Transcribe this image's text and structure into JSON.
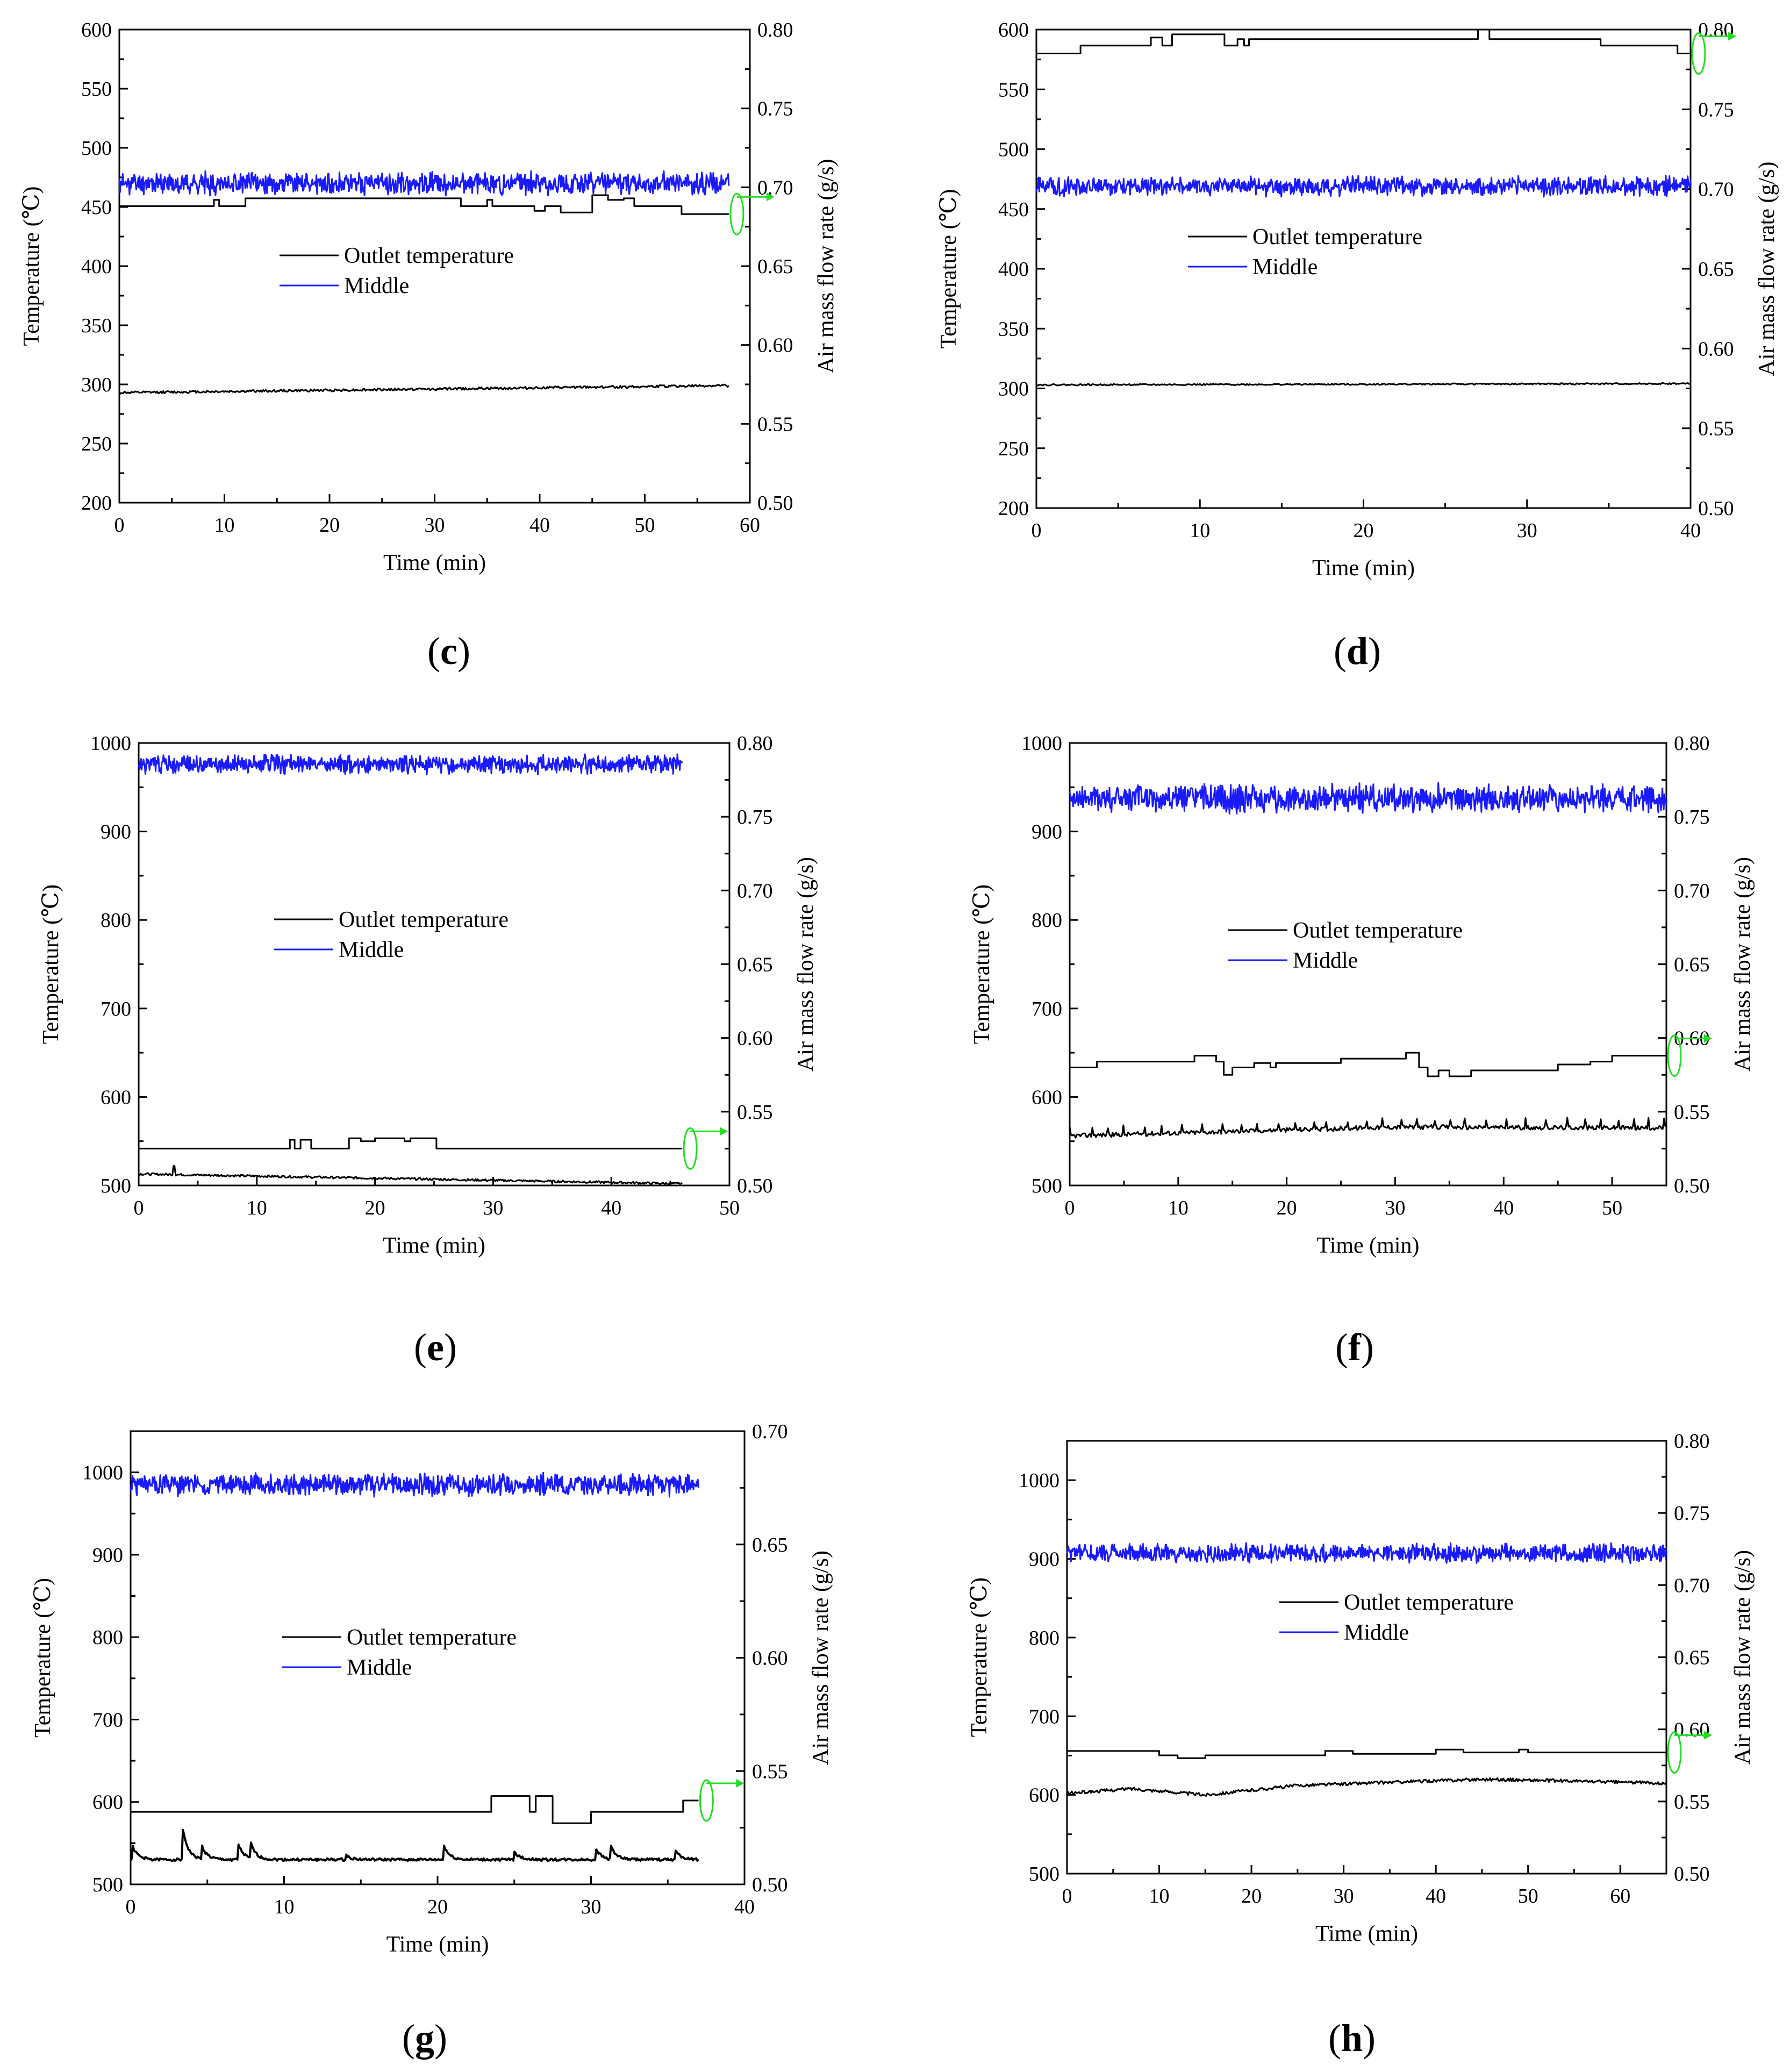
{
  "figure": {
    "colors": {
      "outlet": "#000000",
      "middle": "#1a1aff",
      "airflow": "#000000",
      "marker": "#22dd22"
    }
  },
  "chart_data": [
    {
      "type": "line",
      "panel": "c",
      "xlabel": "Time (min)",
      "ylabel": "Temperature (℃)",
      "y2label": "Air mass flow rate (g/s)",
      "xlim": [
        0,
        60
      ],
      "ylim": [
        200,
        600
      ],
      "y2lim": [
        0.5,
        0.8
      ],
      "xticks": [
        0,
        10,
        20,
        30,
        40,
        50,
        60
      ],
      "yticks": [
        200,
        250,
        300,
        350,
        400,
        450,
        500,
        550,
        600
      ],
      "y2ticks": [
        "0.50",
        "0.55",
        "0.60",
        "0.65",
        "0.70",
        "0.75",
        "0.80"
      ],
      "legend": [
        "Outlet temperature",
        "Middle"
      ],
      "series": [
        {
          "name": "Middle",
          "axis": "left",
          "style": "noisy",
          "x_end": 58,
          "mean": 470,
          "amp": 7,
          "seed": 11
        },
        {
          "name": "Outlet temperature",
          "axis": "left",
          "style": "smooth",
          "x_end": 58,
          "mean": 296,
          "amp": 1,
          "seed": 12,
          "trend": [
            [
              0,
              293
            ],
            [
              58,
              299
            ]
          ]
        },
        {
          "name": "Air mass flow rate",
          "axis": "right",
          "style": "step",
          "x_end": 58,
          "steps": [
            [
              0,
              0.688
            ],
            [
              9,
              0.692
            ],
            [
              9.5,
              0.688
            ],
            [
              12,
              0.693
            ],
            [
              32.5,
              0.688
            ],
            [
              35,
              0.692
            ],
            [
              35.5,
              0.688
            ],
            [
              39.5,
              0.685
            ],
            [
              40.5,
              0.688
            ],
            [
              42,
              0.684
            ],
            [
              45,
              0.695
            ],
            [
              46.5,
              0.692
            ],
            [
              48,
              0.693
            ],
            [
              49,
              0.688
            ],
            [
              53.5,
              0.683
            ]
          ]
        }
      ]
    },
    {
      "type": "line",
      "panel": "d",
      "xlabel": "Time (min)",
      "ylabel": "Temperature (℃)",
      "y2label": "Air mass flow rate (g/s)",
      "xlim": [
        0,
        40
      ],
      "ylim": [
        200,
        600
      ],
      "y2lim": [
        0.5,
        0.8
      ],
      "xticks": [
        0,
        10,
        20,
        30,
        40
      ],
      "yticks": [
        200,
        250,
        300,
        350,
        400,
        450,
        500,
        550,
        600
      ],
      "y2ticks": [
        "0.50",
        "0.55",
        "0.60",
        "0.65",
        "0.70",
        "0.75",
        "0.80"
      ],
      "legend": [
        "Outlet temperature",
        "Middle"
      ],
      "series": [
        {
          "name": "Middle",
          "axis": "left",
          "style": "noisy",
          "x_end": 40,
          "mean": 469,
          "amp": 6,
          "seed": 21
        },
        {
          "name": "Outlet temperature",
          "axis": "left",
          "style": "smooth",
          "x_end": 40,
          "mean": 303,
          "amp": 0.6,
          "seed": 22,
          "trend": [
            [
              0,
              303
            ],
            [
              40,
              304
            ]
          ]
        },
        {
          "name": "Air mass flow rate",
          "axis": "right",
          "style": "step",
          "x_end": 40,
          "steps": [
            [
              0,
              0.785
            ],
            [
              2.7,
              0.79
            ],
            [
              7,
              0.795
            ],
            [
              7.7,
              0.79
            ],
            [
              8.3,
              0.797
            ],
            [
              11.5,
              0.79
            ],
            [
              12.3,
              0.794
            ],
            [
              12.7,
              0.79
            ],
            [
              13,
              0.794
            ],
            [
              27,
              0.8
            ],
            [
              27.7,
              0.794
            ],
            [
              34.5,
              0.79
            ],
            [
              39.2,
              0.785
            ]
          ]
        }
      ]
    },
    {
      "type": "line",
      "panel": "e",
      "xlabel": "Time (min)",
      "ylabel": "Temperature (℃)",
      "y2label": "Air mass flow rate (g/s)",
      "xlim": [
        0,
        50
      ],
      "ylim": [
        500,
        1000
      ],
      "y2lim": [
        0.5,
        0.8
      ],
      "xticks": [
        0,
        10,
        20,
        30,
        40,
        50
      ],
      "yticks": [
        500,
        600,
        700,
        800,
        900,
        1000
      ],
      "y2ticks": [
        "0.50",
        "0.55",
        "0.60",
        "0.65",
        "0.70",
        "0.75",
        "0.80"
      ],
      "legend": [
        "Outlet temperature",
        "Middle"
      ],
      "series": [
        {
          "name": "Middle",
          "axis": "left",
          "style": "noisy",
          "x_end": 46,
          "mean": 976,
          "amp": 8,
          "seed": 31
        },
        {
          "name": "Outlet temperature",
          "axis": "left",
          "style": "smooth",
          "x_end": 46,
          "mean": 510,
          "amp": 1.2,
          "seed": 32,
          "trend": [
            [
              0,
              513
            ],
            [
              46,
              502
            ]
          ],
          "spikes": [
            [
              3,
              522
            ]
          ]
        },
        {
          "name": "Air mass flow rate",
          "axis": "right",
          "style": "step",
          "x_end": 46,
          "steps": [
            [
              0,
              0.525
            ],
            [
              12.8,
              0.531
            ],
            [
              13.2,
              0.525
            ],
            [
              13.7,
              0.531
            ],
            [
              14.6,
              0.525
            ],
            [
              17.8,
              0.532
            ],
            [
              18.8,
              0.53
            ],
            [
              20,
              0.532
            ],
            [
              22.5,
              0.53
            ],
            [
              23,
              0.532
            ],
            [
              25.2,
              0.525
            ]
          ]
        }
      ]
    },
    {
      "type": "line",
      "panel": "f",
      "xlabel": "Time (min)",
      "ylabel": "Temperature (℃)",
      "y2label": "Air mass flow rate (g/s)",
      "xlim": [
        0,
        55
      ],
      "ylim": [
        500,
        1000
      ],
      "y2lim": [
        0.5,
        0.8
      ],
      "xticks": [
        0,
        10,
        20,
        30,
        40,
        50
      ],
      "yticks": [
        500,
        600,
        700,
        800,
        900,
        1000
      ],
      "y2ticks": [
        "0.50",
        "0.55",
        "0.60",
        "0.65",
        "0.70",
        "0.75",
        "0.80"
      ],
      "legend": [
        "Outlet temperature",
        "Middle"
      ],
      "series": [
        {
          "name": "Middle",
          "axis": "left",
          "style": "noisy",
          "x_end": 55,
          "mean": 937,
          "amp": 12,
          "seed": 41
        },
        {
          "name": "Outlet temperature",
          "axis": "left",
          "style": "smooth",
          "x_end": 55,
          "mean": 563,
          "amp": 2.5,
          "seed": 42,
          "trend": [
            [
              0,
              556
            ],
            [
              30,
              566
            ],
            [
              55,
              565
            ]
          ],
          "spike_every": 1.6,
          "spike_height": 9
        },
        {
          "name": "Air mass flow rate",
          "axis": "right",
          "style": "step",
          "x_end": 55,
          "steps": [
            [
              0,
              0.58
            ],
            [
              2.5,
              0.584
            ],
            [
              11.5,
              0.588
            ],
            [
              13.5,
              0.584
            ],
            [
              14.2,
              0.575
            ],
            [
              15,
              0.58
            ],
            [
              17,
              0.583
            ],
            [
              18.5,
              0.58
            ],
            [
              19,
              0.583
            ],
            [
              25,
              0.586
            ],
            [
              31,
              0.59
            ],
            [
              32.2,
              0.58
            ],
            [
              33,
              0.574
            ],
            [
              34,
              0.578
            ],
            [
              35,
              0.574
            ],
            [
              37,
              0.578
            ],
            [
              45,
              0.582
            ],
            [
              48,
              0.584
            ],
            [
              50,
              0.588
            ]
          ]
        }
      ]
    },
    {
      "type": "line",
      "panel": "g",
      "xlabel": "Time (min)",
      "ylabel": "Temperature (℃)",
      "y2label": "Air mass flow rate (g/s)",
      "xlim": [
        0,
        40
      ],
      "ylim": [
        500,
        1050
      ],
      "y2lim": [
        0.5,
        0.7
      ],
      "xticks": [
        0,
        10,
        20,
        30,
        40
      ],
      "yticks": [
        500,
        600,
        700,
        800,
        900,
        1000
      ],
      "y2ticks": [
        "0.50",
        "0.55",
        "0.60",
        "0.65",
        "0.70"
      ],
      "legend": [
        "Outlet temperature",
        "Middle"
      ],
      "series": [
        {
          "name": "Middle",
          "axis": "left",
          "style": "noisy",
          "x_end": 37,
          "mean": 985,
          "amp": 10,
          "seed": 51
        },
        {
          "name": "Outlet temperature",
          "axis": "left",
          "style": "decay",
          "x_end": 37,
          "mean": 530,
          "amp": 1.5,
          "seed": 52,
          "spikes": [
            [
              0.1,
              548
            ],
            [
              3.4,
              568
            ],
            [
              4.6,
              548
            ],
            [
              7.0,
              550
            ],
            [
              7.8,
              550
            ],
            [
              14,
              536
            ],
            [
              20.4,
              548
            ],
            [
              25,
              540
            ],
            [
              30.3,
              545
            ],
            [
              31.3,
              546
            ],
            [
              35.5,
              542
            ]
          ]
        },
        {
          "name": "Air mass flow rate",
          "axis": "right",
          "style": "step",
          "x_end": 37,
          "steps": [
            [
              0,
              0.532
            ],
            [
              23.5,
              0.539
            ],
            [
              26,
              0.532
            ],
            [
              26.4,
              0.539
            ],
            [
              27.5,
              0.527
            ],
            [
              30,
              0.532
            ],
            [
              36,
              0.537
            ]
          ]
        }
      ]
    },
    {
      "type": "line",
      "panel": "h",
      "xlabel": "Time (min)",
      "ylabel": "Temperature (℃)",
      "y2label": "Air mass flow rate (g/s)",
      "xlim": [
        0,
        65
      ],
      "ylim": [
        500,
        1050
      ],
      "y2lim": [
        0.5,
        0.8
      ],
      "xticks": [
        0,
        10,
        20,
        30,
        40,
        50,
        60
      ],
      "yticks": [
        500,
        600,
        700,
        800,
        900,
        1000
      ],
      "y2ticks": [
        "0.50",
        "0.55",
        "0.60",
        "0.65",
        "0.70",
        "0.75",
        "0.80"
      ],
      "legend": [
        "Outlet temperature",
        "Middle"
      ],
      "series": [
        {
          "name": "Middle",
          "axis": "left",
          "style": "noisy",
          "x_end": 65,
          "mean": 907,
          "amp": 9,
          "seed": 61
        },
        {
          "name": "Outlet temperature",
          "axis": "left",
          "style": "smooth",
          "x_end": 65,
          "mean": 612,
          "amp": 2,
          "seed": 62,
          "trend": [
            [
              0,
              602
            ],
            [
              7,
              608
            ],
            [
              15,
              600
            ],
            [
              25,
              612
            ],
            [
              45,
              620
            ],
            [
              65,
              615
            ]
          ]
        },
        {
          "name": "Air mass flow rate",
          "axis": "right",
          "style": "step",
          "x_end": 65,
          "steps": [
            [
              0,
              0.585
            ],
            [
              10,
              0.582
            ],
            [
              12,
              0.58
            ],
            [
              15,
              0.582
            ],
            [
              28,
              0.585
            ],
            [
              31,
              0.583
            ],
            [
              40,
              0.586
            ],
            [
              43,
              0.584
            ],
            [
              49,
              0.586
            ],
            [
              50,
              0.584
            ]
          ]
        }
      ]
    }
  ],
  "panels": [
    {
      "label_open": "(",
      "letter": "c",
      "label_close": ")"
    },
    {
      "label_open": "(",
      "letter": "d",
      "label_close": ")"
    },
    {
      "label_open": "(",
      "letter": "e",
      "label_close": ")"
    },
    {
      "label_open": "(",
      "letter": "f",
      "label_close": ")"
    },
    {
      "label_open": "(",
      "letter": "g",
      "label_close": ")"
    },
    {
      "label_open": "(",
      "letter": "h",
      "label_close": ")"
    }
  ]
}
